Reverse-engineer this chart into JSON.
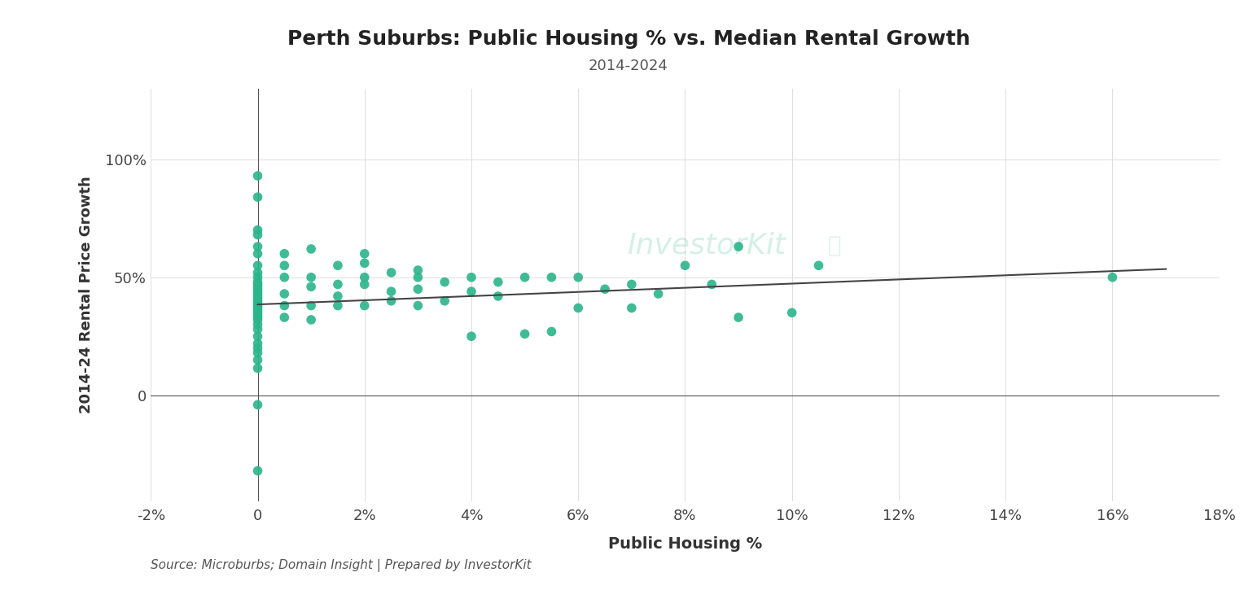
{
  "title": "Perth Suburbs: Public Housing % vs. Median Rental Growth",
  "subtitle": "2014-2024",
  "xlabel": "Public Housing %",
  "ylabel": "2014-24 Rental Price Growth",
  "source_text": "Source: Microburbs; Domain Insight | Prepared by InvestorKit",
  "watermark_text": "InvestorKit",
  "dot_color": "#2ab58a",
  "line_color": "#444444",
  "background_color": "#ffffff",
  "xlim": [
    -0.02,
    0.18
  ],
  "ylim": [
    -0.45,
    1.3
  ],
  "xticks": [
    -0.02,
    0.0,
    0.02,
    0.04,
    0.06,
    0.08,
    0.1,
    0.12,
    0.14,
    0.16,
    0.18
  ],
  "yticks": [
    0.0,
    0.5,
    1.0
  ],
  "scatter_x": [
    0.0,
    0.0,
    0.0,
    0.0,
    0.0,
    0.0,
    0.0,
    0.0,
    0.0,
    0.0,
    0.0,
    0.0,
    0.0,
    0.0,
    0.0,
    0.0,
    0.0,
    0.0,
    0.0,
    0.0,
    0.0,
    0.0,
    0.0,
    0.0,
    0.0,
    0.0,
    0.0,
    0.0,
    0.0,
    0.0,
    0.0,
    0.0,
    0.0,
    0.0,
    0.0,
    0.0,
    0.005,
    0.005,
    0.005,
    0.005,
    0.005,
    0.005,
    0.01,
    0.01,
    0.01,
    0.01,
    0.01,
    0.015,
    0.015,
    0.015,
    0.015,
    0.02,
    0.02,
    0.02,
    0.02,
    0.02,
    0.025,
    0.025,
    0.025,
    0.03,
    0.03,
    0.03,
    0.03,
    0.035,
    0.035,
    0.04,
    0.04,
    0.04,
    0.045,
    0.045,
    0.05,
    0.05,
    0.055,
    0.055,
    0.06,
    0.06,
    0.065,
    0.07,
    0.07,
    0.075,
    0.08,
    0.085,
    0.09,
    0.09,
    0.1,
    0.105,
    0.16
  ],
  "scatter_y": [
    0.115,
    0.93,
    0.84,
    0.7,
    0.68,
    0.63,
    0.6,
    0.55,
    0.52,
    0.5,
    0.48,
    0.47,
    0.46,
    0.45,
    0.44,
    0.43,
    0.42,
    0.41,
    0.4,
    0.39,
    0.38,
    0.37,
    0.36,
    0.35,
    0.34,
    0.33,
    0.32,
    0.3,
    0.28,
    0.25,
    0.22,
    0.2,
    0.18,
    0.15,
    -0.04,
    -0.32,
    0.6,
    0.55,
    0.5,
    0.43,
    0.38,
    0.33,
    0.62,
    0.5,
    0.46,
    0.38,
    0.32,
    0.55,
    0.47,
    0.42,
    0.38,
    0.6,
    0.56,
    0.5,
    0.47,
    0.38,
    0.52,
    0.44,
    0.4,
    0.53,
    0.5,
    0.45,
    0.38,
    0.48,
    0.4,
    0.5,
    0.44,
    0.25,
    0.48,
    0.42,
    0.5,
    0.26,
    0.5,
    0.27,
    0.5,
    0.37,
    0.45,
    0.47,
    0.37,
    0.43,
    0.55,
    0.47,
    0.63,
    0.33,
    0.35,
    0.55,
    0.5
  ],
  "trendline_x": [
    0.0,
    0.17
  ],
  "trendline_y": [
    0.385,
    0.535
  ]
}
